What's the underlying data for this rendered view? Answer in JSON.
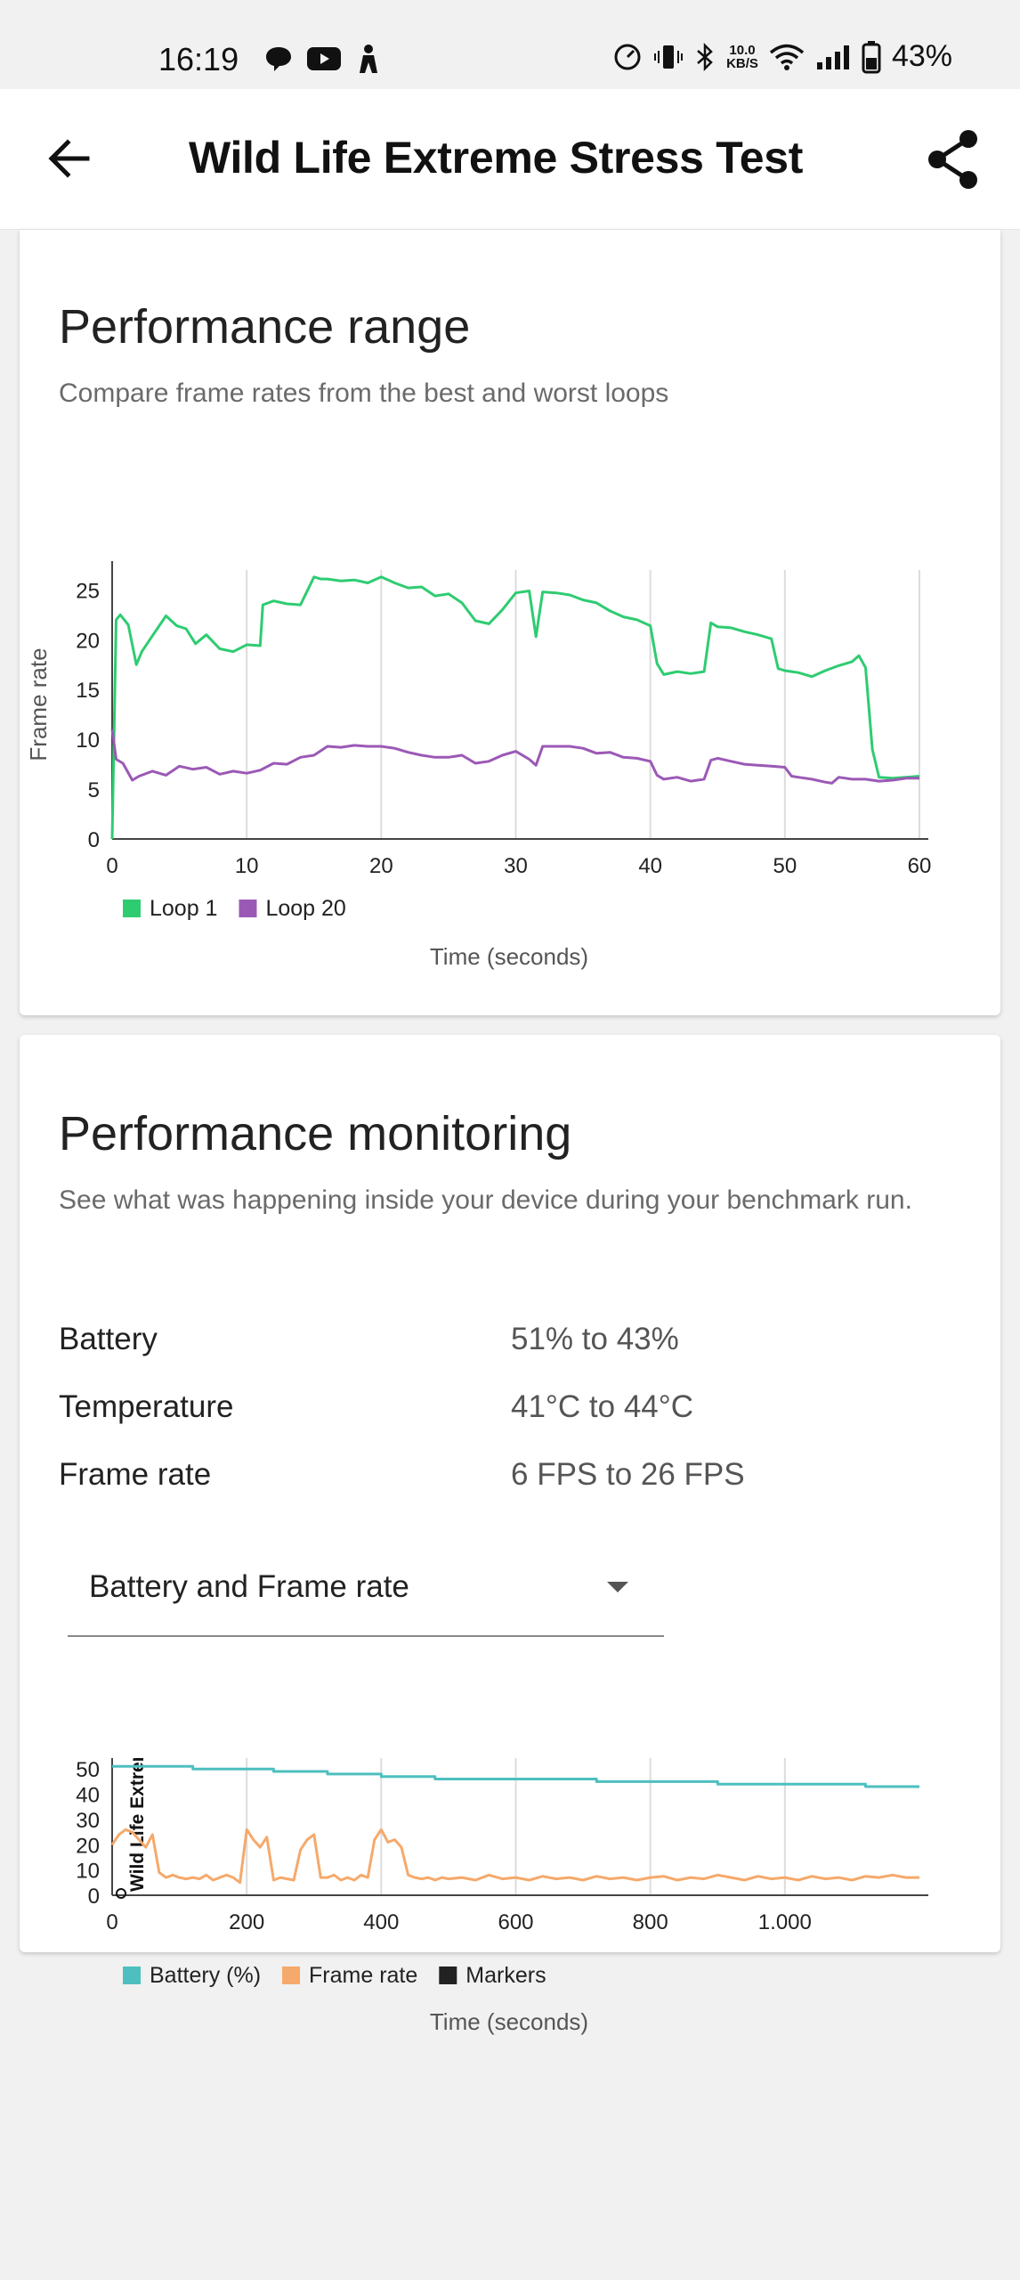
{
  "status_bar": {
    "time": "16:19",
    "speed_value": "10.0",
    "speed_unit": "KB/S",
    "battery": "43%",
    "left_icons": [
      "chat-bubble-icon",
      "youtube-icon",
      "person-icon"
    ],
    "right_icons": [
      "speedometer-icon",
      "vibrate-icon",
      "bluetooth-icon",
      "wifi-icon",
      "signal-icon",
      "battery-icon"
    ]
  },
  "app_bar": {
    "title": "Wild Life Extreme Stress Test",
    "back_icon": "arrow-left-icon",
    "share_icon": "share-icon"
  },
  "performance_range": {
    "title": "Performance range",
    "subtitle": "Compare frame rates from the best and worst loops"
  },
  "performance_monitoring": {
    "title": "Performance monitoring",
    "subtitle": "See what was happening inside your device during your benchmark run.",
    "metrics": [
      {
        "label": "Battery",
        "value": "51% to 43%"
      },
      {
        "label": "Temperature",
        "value": "41°C to 44°C"
      },
      {
        "label": "Frame rate",
        "value": "6 FPS to 26 FPS"
      }
    ],
    "dropdown": {
      "selected": "Battery and Frame rate"
    }
  },
  "chart_data": [
    {
      "type": "line",
      "xlabel": "Time (seconds)",
      "ylabel": "Frame rate",
      "xlim": [
        0,
        60
      ],
      "ylim": [
        0,
        27
      ],
      "x_ticks": [
        "0",
        "10",
        "20",
        "30",
        "40",
        "50",
        "60"
      ],
      "y_ticks": [
        "0",
        "5",
        "10",
        "15",
        "20",
        "25"
      ],
      "x_tick_values": [
        0,
        10,
        20,
        30,
        40,
        50,
        60
      ],
      "y_tick_values": [
        0,
        5,
        10,
        15,
        20,
        25
      ],
      "grid": "vertical",
      "legend": "bottom-left",
      "series": [
        {
          "name": "Loop 1",
          "color": "#2ecc71",
          "x": [
            0,
            0.3,
            0.6,
            1.2,
            1.8,
            2.2,
            3,
            4,
            4.8,
            5.5,
            6.2,
            7,
            8,
            9,
            10,
            11,
            11.2,
            12,
            13,
            14,
            15,
            15.5,
            16,
            17,
            18,
            19,
            20,
            21,
            22,
            23,
            24,
            25,
            26,
            27,
            28,
            29,
            30,
            31,
            31.5,
            32,
            33,
            34,
            35,
            36,
            37,
            38,
            39,
            40,
            40.5,
            41,
            42,
            43,
            44,
            44.5,
            45,
            46,
            47,
            48,
            49,
            49.5,
            50,
            51,
            52,
            53,
            54,
            55,
            55.5,
            56,
            56.5,
            57,
            58,
            59,
            60
          ],
          "values": [
            0,
            22,
            22.5,
            21.5,
            17.5,
            18.8,
            20.4,
            22.4,
            21.4,
            21.1,
            19.6,
            20.5,
            19.1,
            18.8,
            19.5,
            19.4,
            23.5,
            23.9,
            23.6,
            23.5,
            26.3,
            26.1,
            26.1,
            25.9,
            26.0,
            25.7,
            26.3,
            25.7,
            25.2,
            25.3,
            24.4,
            24.6,
            23.7,
            21.9,
            21.6,
            23.0,
            24.7,
            24.9,
            20.3,
            24.8,
            24.7,
            24.5,
            24.0,
            23.7,
            22.9,
            22.3,
            22.0,
            21.4,
            17.6,
            16.5,
            16.8,
            16.6,
            16.8,
            21.7,
            21.3,
            21.2,
            20.8,
            20.5,
            20.1,
            17.1,
            16.9,
            16.7,
            16.3,
            16.9,
            17.4,
            17.8,
            18.4,
            17.2,
            9.0,
            6.2,
            6.1,
            6.2,
            6.3
          ]
        },
        {
          "name": "Loop 20",
          "color": "#9b59b6",
          "x": [
            0,
            0.3,
            0.8,
            1.5,
            2,
            3,
            4,
            5,
            6,
            7,
            8,
            9,
            10,
            11,
            12,
            13,
            14,
            15,
            16,
            17,
            18,
            19,
            20,
            21,
            22,
            23,
            24,
            25,
            26,
            27,
            28,
            29,
            30,
            31,
            31.5,
            32,
            33,
            34,
            35,
            36,
            37,
            38,
            39,
            40,
            40.5,
            41,
            42,
            43,
            44,
            44.5,
            45,
            46,
            47,
            48,
            49,
            50,
            50.5,
            51,
            52,
            53,
            53.5,
            54,
            55,
            56,
            57,
            58,
            59,
            60
          ],
          "values": [
            11,
            8.0,
            7.6,
            5.9,
            6.3,
            6.8,
            6.4,
            7.3,
            7.0,
            7.2,
            6.5,
            6.8,
            6.6,
            6.9,
            7.6,
            7.5,
            8.2,
            8.4,
            9.3,
            9.2,
            9.4,
            9.3,
            9.3,
            9.1,
            8.7,
            8.4,
            8.2,
            8.2,
            8.4,
            7.6,
            7.8,
            8.4,
            8.8,
            8.0,
            7.4,
            9.3,
            9.3,
            9.3,
            9.1,
            8.6,
            8.7,
            8.2,
            8.1,
            7.8,
            6.4,
            6.0,
            6.2,
            5.8,
            6.0,
            7.9,
            8.1,
            7.8,
            7.5,
            7.4,
            7.3,
            7.2,
            6.3,
            6.2,
            6.0,
            5.7,
            5.6,
            6.2,
            6.0,
            6.0,
            5.8,
            5.9,
            6.1,
            6.1
          ]
        }
      ]
    },
    {
      "type": "line",
      "xlabel": "Time (seconds)",
      "ylabel": "",
      "xlim": [
        0,
        1200
      ],
      "ylim": [
        0,
        55
      ],
      "x_ticks": [
        "0",
        "200",
        "400",
        "600",
        "800",
        "1.000"
      ],
      "y_ticks": [
        "0",
        "10",
        "20",
        "30",
        "40",
        "50"
      ],
      "x_tick_values": [
        0,
        200,
        400,
        600,
        800,
        1000
      ],
      "y_tick_values": [
        0,
        10,
        20,
        30,
        40,
        50
      ],
      "grid": "vertical",
      "legend": "bottom-left",
      "marker_label": "Wild Life Extreme Stress Test",
      "markers": [
        {
          "x": 20,
          "label": "Wild Life Extreme Stress Test"
        }
      ],
      "series": [
        {
          "name": "Battery (%)",
          "color": "#4ebfbf",
          "x": [
            0,
            120,
            120,
            240,
            240,
            320,
            320,
            400,
            400,
            480,
            480,
            540,
            540,
            600,
            600,
            720,
            720,
            780,
            780,
            900,
            900,
            960,
            960,
            1080,
            1080,
            1120,
            1120,
            1200
          ],
          "values": [
            51,
            51,
            50,
            50,
            49,
            49,
            48,
            48,
            47,
            47,
            46,
            46,
            46,
            46,
            46,
            46,
            45,
            45,
            45,
            45,
            44,
            44,
            44,
            44,
            44,
            44,
            43,
            43
          ]
        },
        {
          "name": "Frame rate",
          "color": "#f5a96b",
          "x": [
            0,
            10,
            20,
            30,
            40,
            50,
            60,
            70,
            80,
            90,
            100,
            110,
            120,
            130,
            140,
            150,
            160,
            170,
            180,
            190,
            200,
            210,
            220,
            230,
            240,
            250,
            260,
            270,
            280,
            290,
            300,
            310,
            320,
            330,
            340,
            350,
            360,
            370,
            380,
            390,
            400,
            410,
            420,
            430,
            440,
            450,
            460,
            470,
            480,
            490,
            500,
            520,
            540,
            560,
            580,
            600,
            620,
            640,
            660,
            680,
            700,
            720,
            740,
            760,
            780,
            800,
            820,
            840,
            860,
            880,
            900,
            920,
            940,
            960,
            980,
            1000,
            1020,
            1040,
            1060,
            1080,
            1100,
            1120,
            1140,
            1160,
            1180,
            1200
          ],
          "values": [
            20,
            24,
            26,
            25,
            22,
            19,
            24,
            9,
            7,
            8,
            7,
            6.5,
            7,
            6.5,
            8,
            6,
            7,
            8,
            7,
            5,
            26,
            22,
            19,
            23,
            6,
            7,
            6.5,
            6,
            18,
            22,
            24,
            7,
            7,
            8,
            6,
            7,
            6,
            8,
            7,
            22,
            26,
            21,
            22,
            19,
            8,
            7,
            6.5,
            7,
            6,
            7,
            6.5,
            7,
            6,
            8,
            6.5,
            7,
            6,
            7.5,
            6.5,
            7,
            6,
            7.5,
            6.5,
            7,
            6,
            7,
            7.5,
            6,
            7,
            6.5,
            8,
            7,
            6,
            7.5,
            6.5,
            7,
            6,
            7.5,
            6.5,
            7,
            6,
            7.5,
            7,
            8,
            7,
            7
          ]
        },
        {
          "name": "Markers",
          "color": "#222222",
          "x": [],
          "values": []
        }
      ]
    }
  ]
}
